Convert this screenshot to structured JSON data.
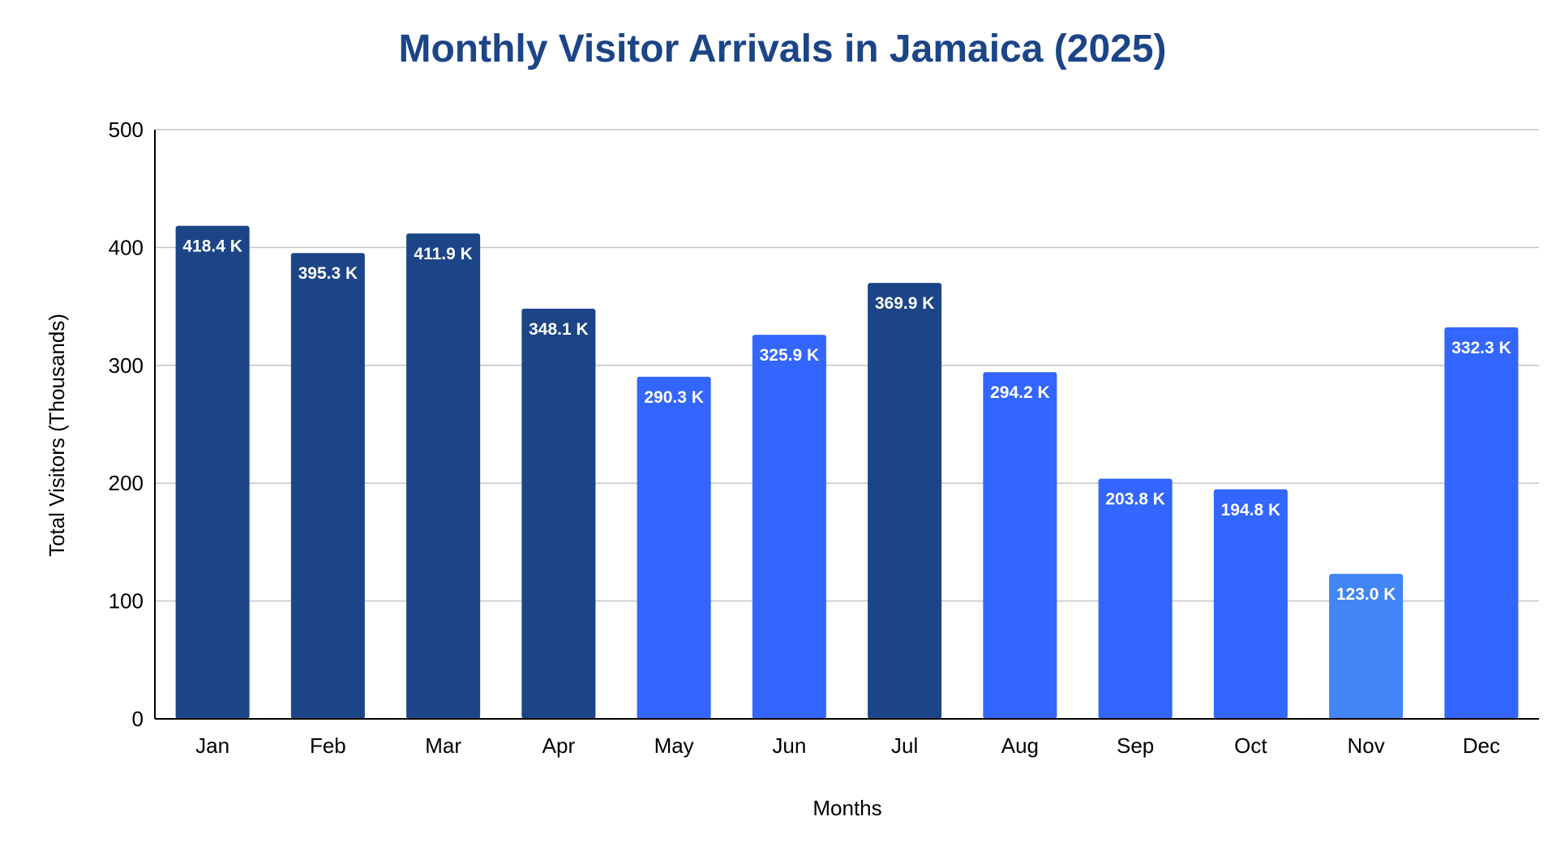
{
  "chart_data": {
    "type": "bar",
    "title": "Monthly Visitor Arrivals in Jamaica (2025)",
    "xlabel": "Months",
    "ylabel": "Total Visitors (Thousands)",
    "ylim": [
      0,
      500
    ],
    "yticks": [
      0,
      100,
      200,
      300,
      400,
      500
    ],
    "grid": true,
    "legend": "none",
    "categories": [
      "Jan",
      "Feb",
      "Mar",
      "Apr",
      "May",
      "Jun",
      "Jul",
      "Aug",
      "Sep",
      "Oct",
      "Nov",
      "Dec"
    ],
    "values": [
      418.4,
      395.3,
      411.9,
      348.1,
      290.3,
      325.9,
      369.9,
      294.2,
      203.8,
      194.8,
      123.0,
      332.3
    ],
    "data_labels": [
      "418.4 K",
      "395.3 K",
      "411.9 K",
      "348.1 K",
      "290.3 K",
      "325.9 K",
      "369.9 K",
      "294.2 K",
      "203.8 K",
      "194.8 K",
      "123.0 K",
      "332.3 K"
    ],
    "bar_colors": [
      "#1c4587",
      "#1c4587",
      "#1c4587",
      "#1c4587",
      "#3366ff",
      "#3366ff",
      "#1c4587",
      "#3366ff",
      "#3366ff",
      "#3366ff",
      "#4285f4",
      "#3366ff"
    ]
  }
}
